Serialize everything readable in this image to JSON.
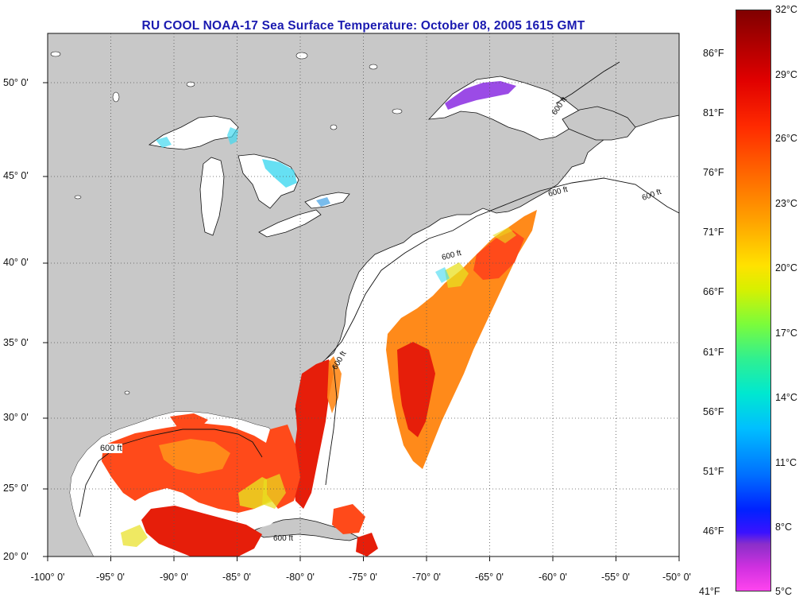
{
  "title": "RU COOL  NOAA-17  Sea Surface Temperature:  October 08, 2005 1615 GMT",
  "map": {
    "lat_labels": [
      "50° 0'",
      "45° 0'",
      "40° 0'",
      "35° 0'",
      "30° 0'",
      "25° 0'",
      "20° 0'"
    ],
    "lon_labels": [
      "-100° 0'",
      "-95° 0'",
      "-90° 0'",
      "-85° 0'",
      "-80° 0'",
      "-75° 0'",
      "-70° 0'",
      "-65° 0'",
      "-60° 0'",
      "-55° 0'",
      "-50° 0'"
    ],
    "contour_labels": [
      "600 ft",
      "600 ft",
      "600 ft",
      "600 ft",
      "600 ft",
      "600 ft",
      "600 ft"
    ],
    "colors": {
      "land": "#c8c8c8",
      "ocean": "#ffffff",
      "warm": "#ff4a1a",
      "hot": "#e61e0a",
      "orange": "#ff8a1a",
      "yellow": "#e8e020",
      "cyan": "#40d8f0",
      "purple": "#8a2be2"
    }
  },
  "colorbar": {
    "fahrenheit_labels": [
      "86°F",
      "81°F",
      "76°F",
      "71°F",
      "66°F",
      "61°F",
      "56°F",
      "51°F",
      "46°F",
      "41°F"
    ],
    "celsius_labels": [
      "32°C",
      "29°C",
      "26°C",
      "23°C",
      "20°C",
      "17°C",
      "14°C",
      "11°C",
      "8°C",
      "5°C"
    ]
  }
}
